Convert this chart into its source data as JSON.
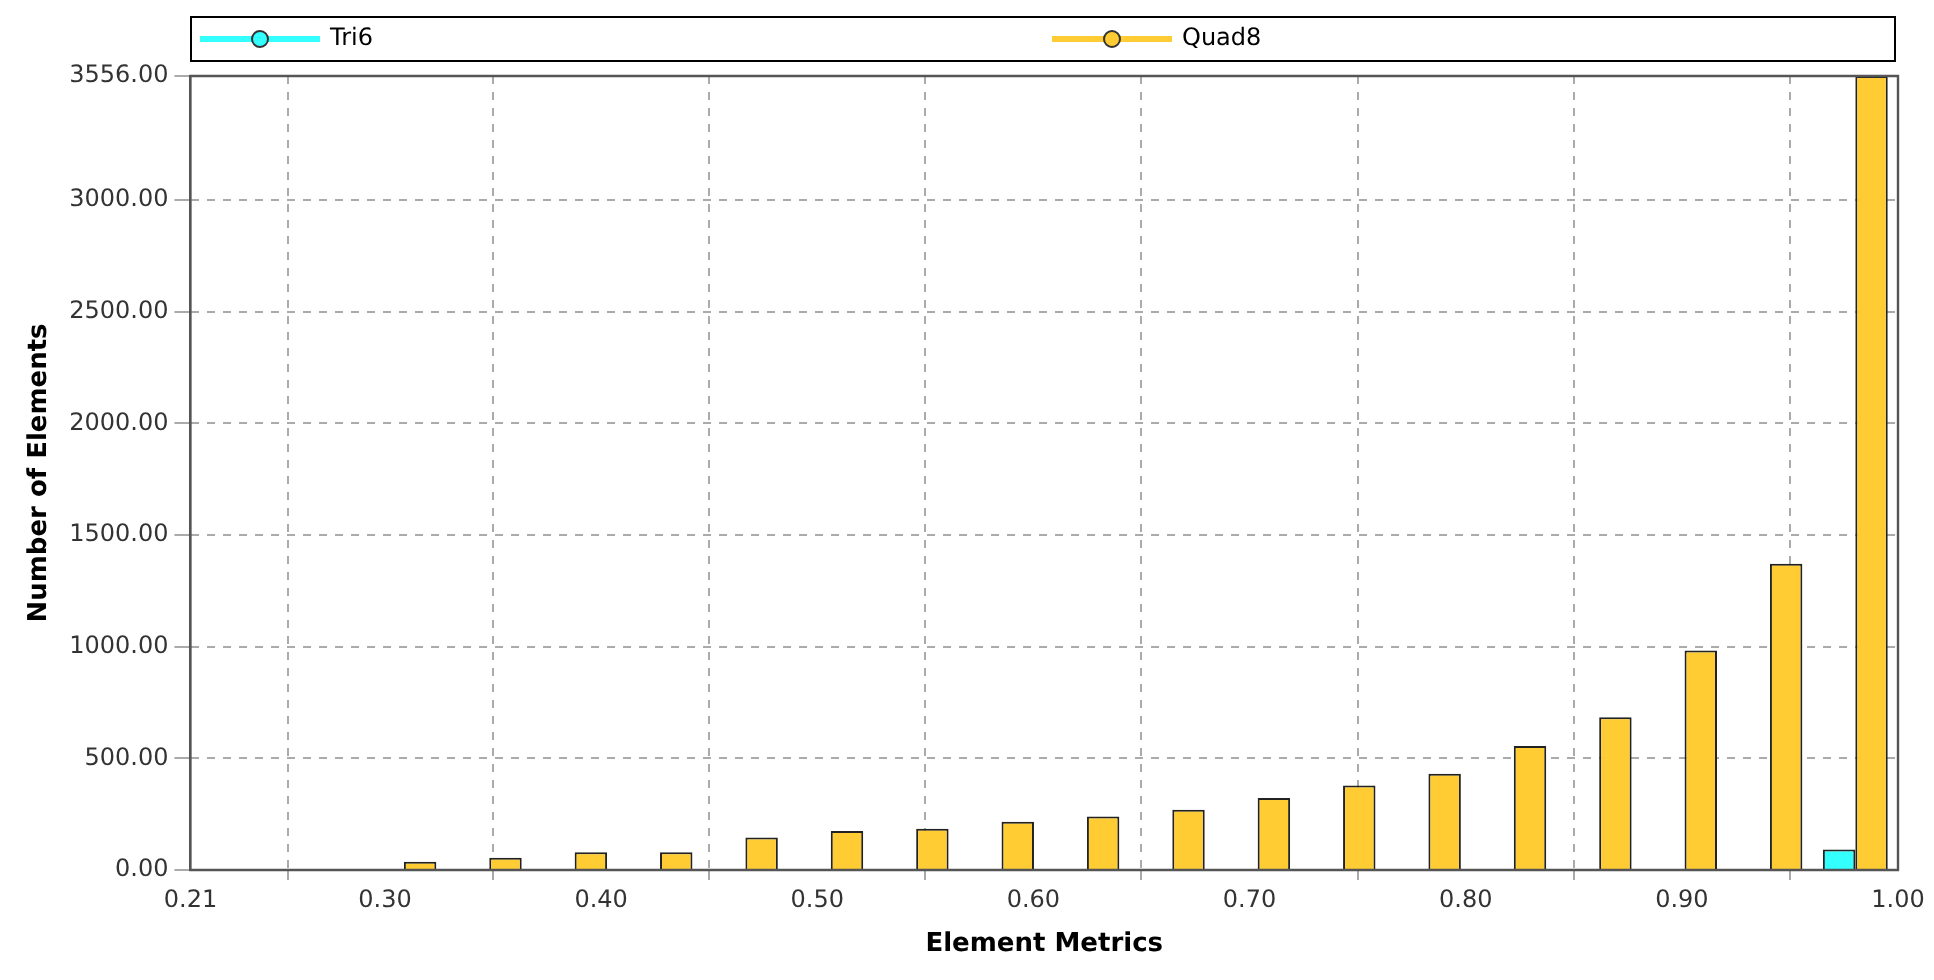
{
  "chart_data": {
    "type": "histogram",
    "xlabel": "Element Metrics",
    "ylabel": "Number of Elements",
    "bins": [
      0.21,
      0.2495,
      0.289,
      0.3285,
      0.368,
      0.4075,
      0.447,
      0.4865,
      0.526,
      0.5655,
      0.605,
      0.6445,
      0.684,
      0.7235,
      0.763,
      0.8025,
      0.842,
      0.8815,
      0.921,
      0.9605,
      1.0
    ],
    "series": [
      {
        "name": "Tri6",
        "color": "#33ffff",
        "values": [
          0,
          0,
          0,
          0,
          0,
          0,
          0,
          0,
          0,
          0,
          0,
          0,
          0,
          0,
          0,
          0,
          0,
          0,
          0,
          92
        ]
      },
      {
        "name": "Quad8",
        "color": "#ffcc33",
        "values": [
          0,
          0,
          37,
          55,
          80,
          80,
          145,
          175,
          185,
          216,
          240,
          270,
          323,
          379,
          431,
          555,
          684,
          983,
          1372,
          3556
        ]
      }
    ],
    "xlim": [
      0.21,
      1.0
    ],
    "xticks": [
      0.21,
      {
        "value": 0.3,
        "label": "0.30"
      },
      {
        "value": 0.4,
        "label": "0.40"
      },
      {
        "value": 0.5,
        "label": "0.50"
      },
      {
        "value": 0.6,
        "label": "0.60"
      },
      {
        "value": 0.7,
        "label": "0.70"
      },
      {
        "value": 0.8,
        "label": "0.80"
      },
      {
        "value": 0.9,
        "label": "0.90"
      },
      {
        "value": 1.0,
        "label": "1.00"
      }
    ],
    "ylim": [
      0,
      3556
    ],
    "yticks": [
      {
        "value": 0,
        "label": "0.00"
      },
      {
        "value": 500,
        "label": "500.00"
      },
      {
        "value": 1000,
        "label": "1000.00"
      },
      {
        "value": 1500,
        "label": "1500.00"
      },
      {
        "value": 2000,
        "label": "2000.00"
      },
      {
        "value": 2500,
        "label": "2500.00"
      },
      {
        "value": 3000,
        "label": "3000.00"
      },
      {
        "value": 3556,
        "label": "3556.00"
      }
    ],
    "grid": true,
    "legend": "top",
    "marker": "circle"
  }
}
